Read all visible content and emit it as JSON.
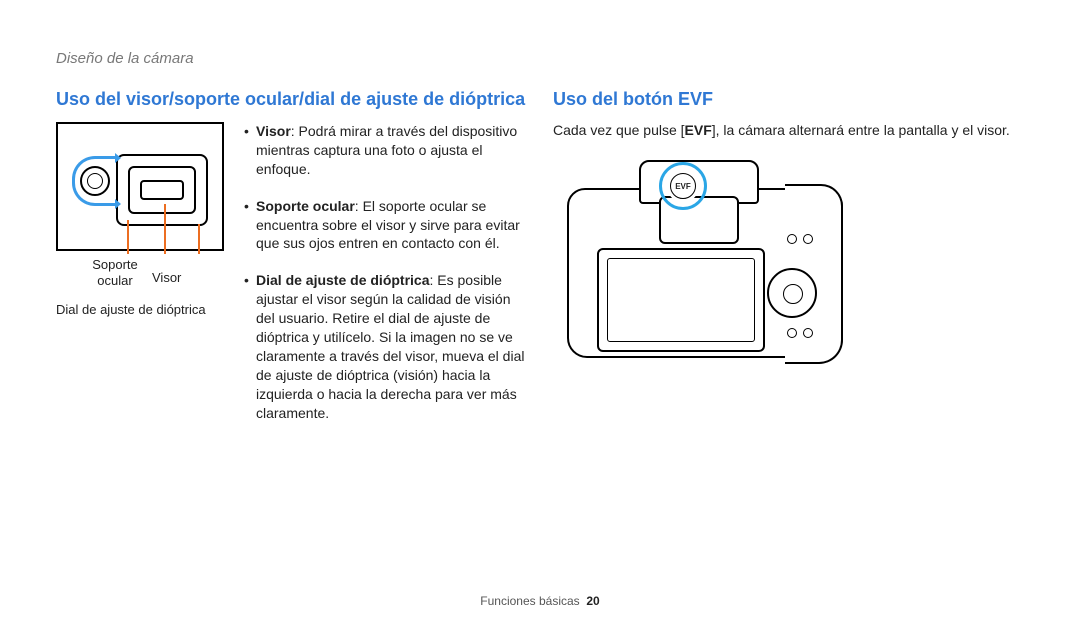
{
  "breadcrumb": "Diseño de la cámara",
  "left": {
    "heading": "Uso del visor/soporte ocular/dial de ajuste de dióptrica",
    "labels": {
      "soporte": "Soporte ocular",
      "visor": "Visor",
      "dial": "Dial de ajuste de dióptrica"
    },
    "bullets": [
      {
        "term": "Visor",
        "text": ": Podrá mirar a través del dispositivo mientras captura una foto o ajusta el enfoque."
      },
      {
        "term": "Soporte ocular",
        "text": ": El soporte ocular se encuentra sobre el visor y sirve para evitar que sus ojos entren en contacto con él."
      },
      {
        "term": "Dial de ajuste de dióptrica",
        "text": ": Es posible ajustar el visor según la calidad de visión del usuario. Retire el dial de ajuste de dióptrica y utilícelo. Si la imagen no se ve claramente a través del visor, mueva el dial de ajuste de dióptrica (visión) hacia la izquierda o hacia la derecha para ver más claramente."
      }
    ]
  },
  "right": {
    "heading": "Uso del botón EVF",
    "text_pre": "Cada vez que pulse [",
    "text_bold": "EVF",
    "text_post": "], la cámara alternará entre la pantalla y el visor.",
    "evf_button_label": "EVF"
  },
  "footer": {
    "label": "Funciones básicas",
    "page": "20"
  },
  "colors": {
    "heading_blue": "#2f78d4",
    "arrow_blue": "#3a9be8",
    "callout_orange": "#ec6e21",
    "highlight_blue": "#2aa6e6",
    "breadcrumb_grey": "#787878"
  }
}
